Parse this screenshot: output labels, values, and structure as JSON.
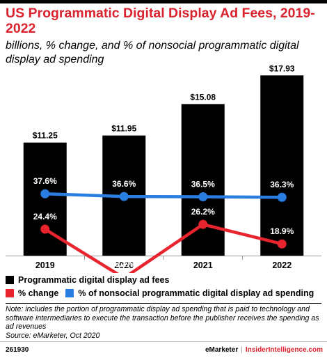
{
  "header": {
    "title": "US Programmatic Digital Display Ad Fees, 2019-2022",
    "subtitle": "billions, % change, and % of nonsocial programmatic digital display ad spending"
  },
  "chart_data": {
    "type": "bar",
    "categories": [
      "2019",
      "2020",
      "2021",
      "2022"
    ],
    "series": [
      {
        "name": "Programmatic digital display ad fees",
        "type": "bar",
        "color": "#000000",
        "values": [
          11.25,
          11.95,
          15.08,
          17.93
        ],
        "labels": [
          "$11.25",
          "$11.95",
          "$15.08",
          "$17.93"
        ]
      },
      {
        "name": "% change",
        "type": "line",
        "color": "#e8242e",
        "values": [
          24.4,
          6.2,
          26.2,
          18.9
        ],
        "labels": [
          "24.4%",
          "6.2%",
          "26.2%",
          "18.9%"
        ]
      },
      {
        "name": "% of nonsocial programmatic digital display ad spending",
        "type": "line",
        "color": "#2a7de1",
        "values": [
          37.6,
          36.6,
          36.5,
          36.3
        ],
        "labels": [
          "37.6%",
          "36.6%",
          "36.5%",
          "36.3%"
        ]
      }
    ],
    "grid": false,
    "legend_position": "bottom"
  },
  "legend": {
    "bars": "Programmatic digital display ad fees",
    "change": "% change",
    "share": "% of nonsocial programmatic digital display ad spending"
  },
  "note": {
    "text": "Note: includes the portion of programmatic display ad spending that is paid to technology and software intermediaries to execute the transaction before the publisher receives the spending as ad revenues",
    "source": "Source: eMarketer, Oct 2020"
  },
  "footer": {
    "chart_id": "261930",
    "brand": "eMarketer",
    "brand2": "InsiderIntelligence.com"
  }
}
